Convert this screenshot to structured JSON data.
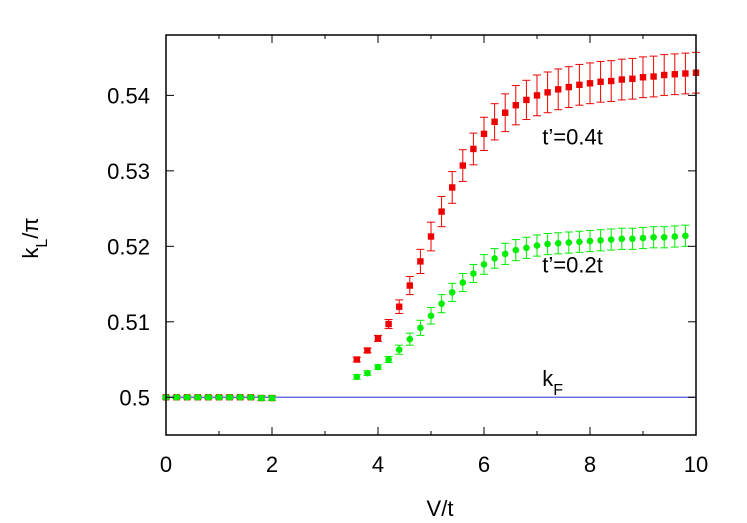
{
  "chart_data": {
    "type": "scatter",
    "title": "",
    "xlabel": "V/t",
    "ylabel_main": "k",
    "ylabel_sub": "L",
    "ylabel_rest": "/π",
    "xlim": [
      0,
      10
    ],
    "ylim": [
      0.495,
      0.548
    ],
    "x_ticks": [
      0,
      2,
      4,
      6,
      8,
      10
    ],
    "x_tick_labels": [
      "0",
      "2",
      "4",
      "6",
      "8",
      "10"
    ],
    "y_ticks": [
      0.5,
      0.51,
      0.52,
      0.53,
      0.54
    ],
    "y_tick_labels": [
      "0.5",
      "0.51",
      "0.52",
      "0.53",
      "0.54"
    ],
    "grid": false,
    "reference_line": {
      "y": 0.5,
      "color": "#5555dd"
    },
    "annotations": [
      {
        "text": "t’=0.4t",
        "x": 7.1,
        "y": 0.5335
      },
      {
        "text": "t’=0.2t",
        "x": 7.1,
        "y": 0.5165
      },
      {
        "text_main": "k",
        "text_sub": "F",
        "x": 7.1,
        "y": 0.5015
      }
    ],
    "series": [
      {
        "color": "#ee0000",
        "marker": "square",
        "points": [
          [
            0.0,
            0.5,
            0.0002
          ],
          [
            0.2,
            0.5,
            0.0002
          ],
          [
            0.4,
            0.5,
            0.0002
          ],
          [
            0.6,
            0.5,
            0.0002
          ],
          [
            0.8,
            0.5,
            0.0002
          ],
          [
            1.0,
            0.5,
            0.0002
          ],
          [
            1.2,
            0.5,
            0.0002
          ],
          [
            1.4,
            0.5,
            0.0002
          ],
          [
            1.6,
            0.5,
            0.0002
          ],
          [
            1.8,
            0.4999,
            0.0003
          ],
          [
            2.0,
            0.4999,
            0.0003
          ],
          [
            3.6,
            0.505,
            0.0003
          ],
          [
            3.8,
            0.5062,
            0.0003
          ],
          [
            4.0,
            0.5078,
            0.0004
          ],
          [
            4.2,
            0.5097,
            0.0006
          ],
          [
            4.4,
            0.512,
            0.0009
          ],
          [
            4.6,
            0.5148,
            0.0012
          ],
          [
            4.8,
            0.518,
            0.0016
          ],
          [
            5.0,
            0.5213,
            0.0019
          ],
          [
            5.2,
            0.5246,
            0.002
          ],
          [
            5.4,
            0.5278,
            0.0021
          ],
          [
            5.6,
            0.5307,
            0.0021
          ],
          [
            5.8,
            0.5329,
            0.0021
          ],
          [
            6.0,
            0.5349,
            0.0022
          ],
          [
            6.2,
            0.5365,
            0.0024
          ],
          [
            6.4,
            0.5377,
            0.0025
          ],
          [
            6.6,
            0.5387,
            0.0026
          ],
          [
            6.8,
            0.5394,
            0.0026
          ],
          [
            7.0,
            0.54,
            0.0027
          ],
          [
            7.2,
            0.5404,
            0.0027
          ],
          [
            7.4,
            0.5408,
            0.0027
          ],
          [
            7.6,
            0.5411,
            0.0027
          ],
          [
            7.8,
            0.5414,
            0.0027
          ],
          [
            8.0,
            0.5416,
            0.0027
          ],
          [
            8.2,
            0.5418,
            0.0027
          ],
          [
            8.4,
            0.5419,
            0.0027
          ],
          [
            8.6,
            0.5421,
            0.0027
          ],
          [
            8.8,
            0.5422,
            0.0027
          ],
          [
            9.0,
            0.5424,
            0.0027
          ],
          [
            9.2,
            0.5425,
            0.0027
          ],
          [
            9.4,
            0.5427,
            0.0027
          ],
          [
            9.6,
            0.5428,
            0.0027
          ],
          [
            9.8,
            0.5429,
            0.0027
          ],
          [
            10.0,
            0.543,
            0.0027
          ]
        ]
      },
      {
        "color": "#00ee00",
        "marker": "circle",
        "points": [
          [
            0.0,
            0.5,
            0.0002
          ],
          [
            0.2,
            0.5,
            0.0002
          ],
          [
            0.4,
            0.5,
            0.0002
          ],
          [
            0.6,
            0.5,
            0.0002
          ],
          [
            0.8,
            0.5,
            0.0002
          ],
          [
            1.0,
            0.5,
            0.0002
          ],
          [
            1.2,
            0.5,
            0.0002
          ],
          [
            1.4,
            0.5,
            0.0002
          ],
          [
            1.6,
            0.5,
            0.0002
          ],
          [
            1.8,
            0.4999,
            0.0003
          ],
          [
            2.0,
            0.4999,
            0.0003
          ],
          [
            3.6,
            0.5027,
            0.0003
          ],
          [
            3.8,
            0.5032,
            0.0003
          ],
          [
            4.0,
            0.504,
            0.0003
          ],
          [
            4.2,
            0.505,
            0.0004
          ],
          [
            4.4,
            0.5063,
            0.0006
          ],
          [
            4.6,
            0.5077,
            0.0008
          ],
          [
            4.8,
            0.5092,
            0.001
          ],
          [
            5.0,
            0.5108,
            0.0011
          ],
          [
            5.2,
            0.5124,
            0.0012
          ],
          [
            5.4,
            0.5139,
            0.0012
          ],
          [
            5.6,
            0.5152,
            0.0012
          ],
          [
            5.8,
            0.5164,
            0.0012
          ],
          [
            6.0,
            0.5176,
            0.0013
          ],
          [
            6.2,
            0.5184,
            0.0013
          ],
          [
            6.4,
            0.519,
            0.0014
          ],
          [
            6.6,
            0.5195,
            0.0014
          ],
          [
            6.8,
            0.5198,
            0.0014
          ],
          [
            7.0,
            0.5201,
            0.0014
          ],
          [
            7.2,
            0.5203,
            0.0014
          ],
          [
            7.4,
            0.5204,
            0.0014
          ],
          [
            7.6,
            0.5205,
            0.0014
          ],
          [
            7.8,
            0.5206,
            0.0014
          ],
          [
            8.0,
            0.5207,
            0.0014
          ],
          [
            8.2,
            0.5208,
            0.0014
          ],
          [
            8.4,
            0.5209,
            0.0014
          ],
          [
            8.6,
            0.521,
            0.0014
          ],
          [
            8.8,
            0.521,
            0.0014
          ],
          [
            9.0,
            0.5211,
            0.0014
          ],
          [
            9.2,
            0.5212,
            0.0014
          ],
          [
            9.4,
            0.5212,
            0.0014
          ],
          [
            9.6,
            0.5213,
            0.0014
          ],
          [
            9.8,
            0.5214,
            0.0014
          ]
        ]
      }
    ]
  }
}
